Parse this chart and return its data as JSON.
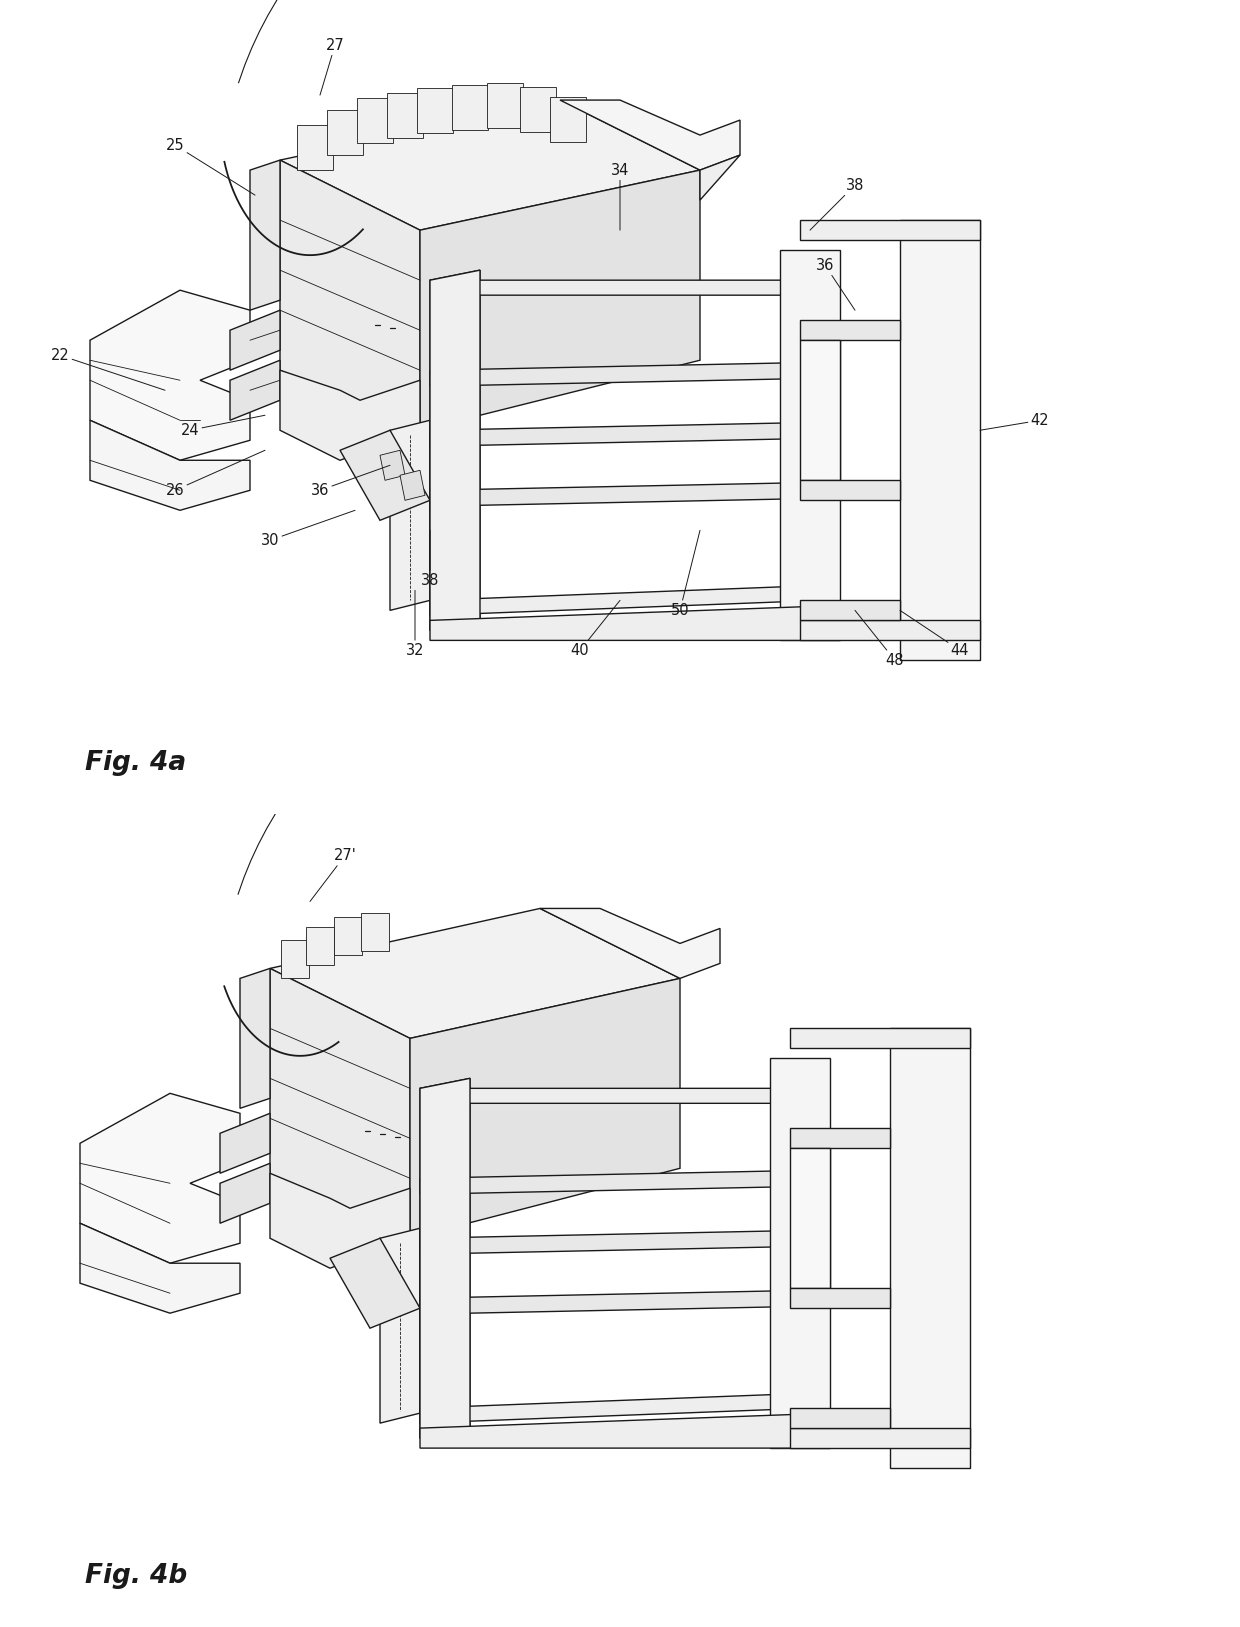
{
  "background_color": "#ffffff",
  "line_color": "#1a1a1a",
  "lw": 1.0,
  "tlw": 0.6,
  "fig_width": 12.4,
  "fig_height": 16.27,
  "fig4a_label": "Fig. 4a",
  "fig4b_label": "Fig. 4b",
  "annotation_fontsize": 10.5,
  "label_fontsize": 19
}
